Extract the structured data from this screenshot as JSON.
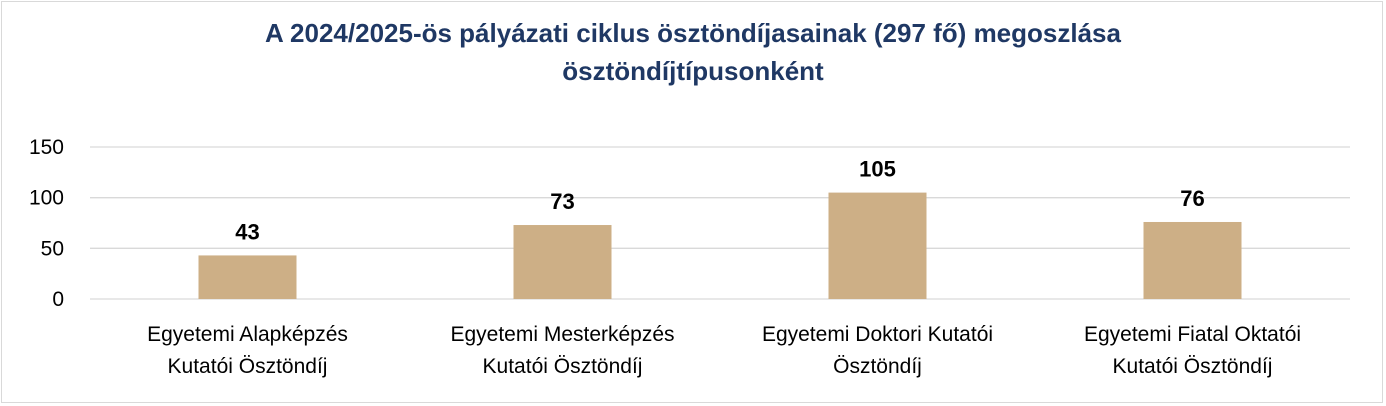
{
  "chart_data": {
    "type": "bar",
    "title": "A 2024/2025-ös pályázati ciklus ösztöndíjasainak (297 fő) megoszlása ösztöndíjtípusonként",
    "title_lines": [
      "A 2024/2025-ös pályázati ciklus ösztöndíjasainak (297 fő) megoszlása",
      "ösztöndíjtípusonként"
    ],
    "categories": [
      [
        "Egyetemi Alapképzés",
        "Kutatói Ösztöndíj"
      ],
      [
        "Egyetemi Mesterképzés",
        "Kutatói Ösztöndíj"
      ],
      [
        "Egyetemi Doktori Kutatói",
        "Ösztöndíj"
      ],
      [
        "Egyetemi Fiatal Oktatói",
        "Kutatói Ösztöndíj"
      ]
    ],
    "values": [
      43,
      73,
      105,
      76
    ],
    "data_labels": [
      "43",
      "73",
      "105",
      "76"
    ],
    "yticks": [
      0,
      50,
      100,
      150
    ],
    "ytick_labels": [
      "0",
      "50",
      "100",
      "150"
    ],
    "ylim": [
      0,
      150
    ],
    "xlabel": "",
    "ylabel": "",
    "grid": true,
    "legend": "none",
    "colors": {
      "bar": "#cdaf86",
      "grid": "#d9d9d9",
      "title": "#1f3864"
    }
  }
}
